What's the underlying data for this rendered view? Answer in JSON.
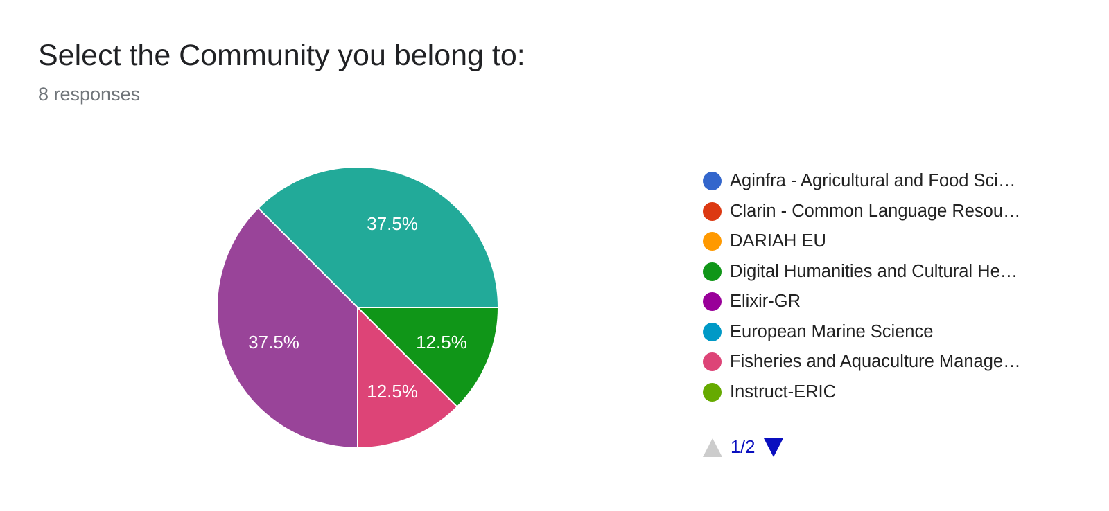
{
  "header": {
    "title": "Select the Community you belong to:",
    "responses": "8 responses"
  },
  "chart_data": {
    "type": "pie",
    "slices": [
      {
        "name": "Aginfra - Agricultural and Food Sci…",
        "value": 0,
        "color": "#3366cc"
      },
      {
        "name": "Clarin - Common Language Resou…",
        "value": 0,
        "color": "#dc3912"
      },
      {
        "name": "DARIAH EU",
        "value": 0,
        "color": "#ff9900"
      },
      {
        "name": "Digital Humanities and Cultural He…",
        "value": 12.5,
        "label": "12.5%",
        "color": "#109618"
      },
      {
        "name": "Elixir-GR",
        "value": 0,
        "color": "#990099"
      },
      {
        "name": "European Marine Science",
        "value": 0,
        "color": "#0099c6"
      },
      {
        "name": "Fisheries and Aquaculture Manage…",
        "value": 12.5,
        "label": "12.5%",
        "color": "#dd4477"
      },
      {
        "name": "Instruct-ERIC",
        "value": 0,
        "color": "#66aa00"
      },
      {
        "name": "",
        "value": 37.5,
        "label": "37.5%",
        "color": "#994499"
      },
      {
        "name": "",
        "value": 37.5,
        "label": "37.5%",
        "color": "#22aa99"
      }
    ],
    "legend_position": "right",
    "start_angle_deg": 90,
    "direction": "clockwise"
  },
  "legend": {
    "items": [
      {
        "label": "Aginfra - Agricultural and Food Sci…",
        "color": "#3366cc"
      },
      {
        "label": "Clarin - Common Language Resou…",
        "color": "#dc3912"
      },
      {
        "label": "DARIAH EU",
        "color": "#ff9900"
      },
      {
        "label": "Digital Humanities and Cultural He…",
        "color": "#109618"
      },
      {
        "label": "Elixir-GR",
        "color": "#990099"
      },
      {
        "label": "European Marine Science",
        "color": "#0099c6"
      },
      {
        "label": "Fisheries and Aquaculture Manage…",
        "color": "#dd4477"
      },
      {
        "label": "Instruct-ERIC",
        "color": "#66aa00"
      }
    ],
    "pager": {
      "text": "1/2",
      "prev_icon": "triangle-up-icon",
      "next_icon": "triangle-down-icon"
    }
  }
}
